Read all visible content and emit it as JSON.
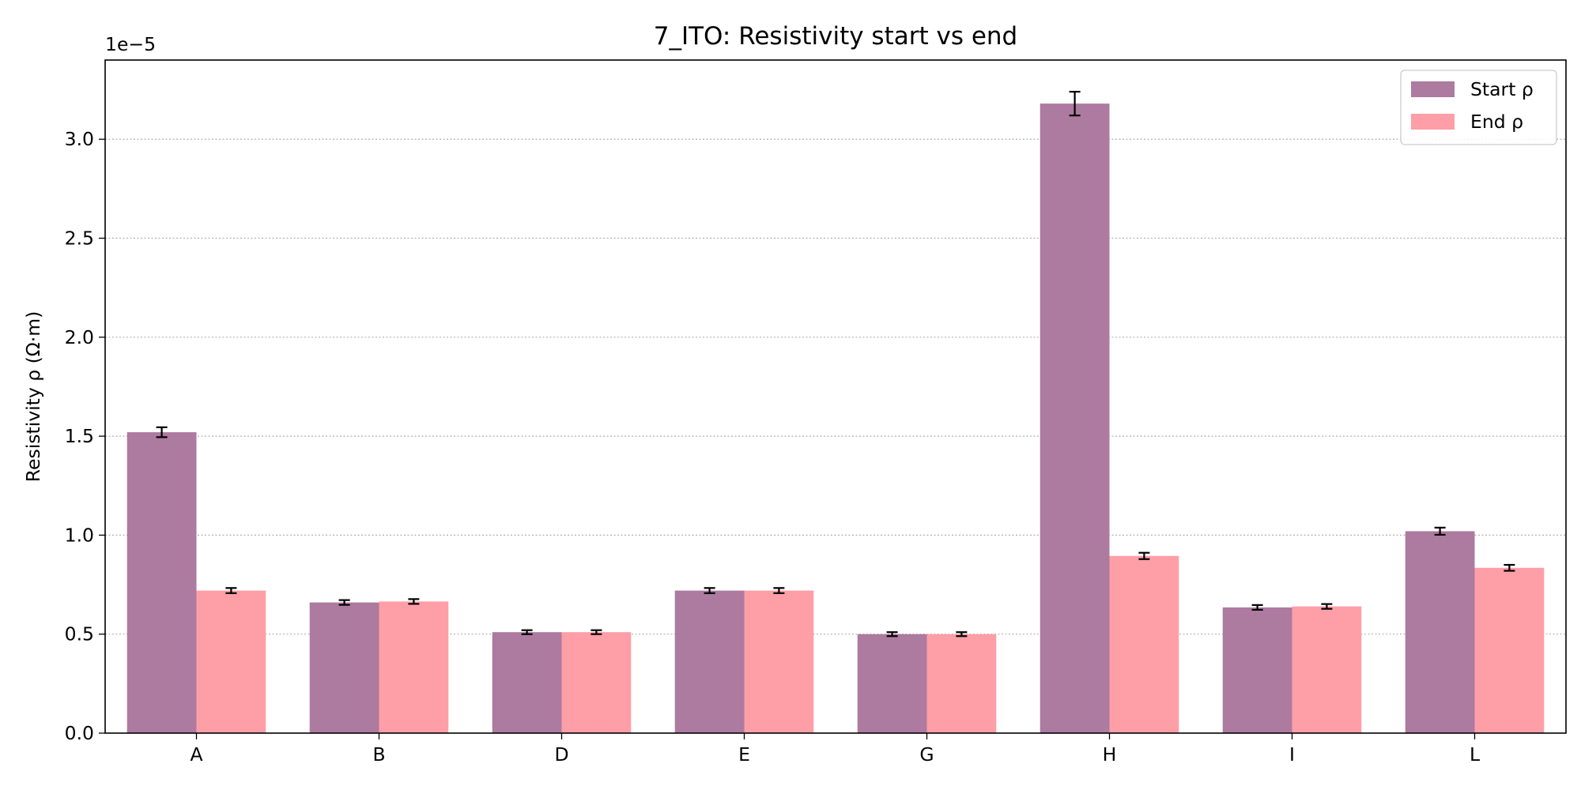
{
  "chart_data": {
    "type": "bar",
    "title": "7_ITO: Resistivity start vs end",
    "xlabel": "",
    "ylabel": "Resistivity ρ (Ω·m)",
    "y_offset_label": "1e−5",
    "ylim": [
      0,
      3.4
    ],
    "yticks": [
      0.0,
      0.5,
      1.0,
      1.5,
      2.0,
      2.5,
      3.0
    ],
    "ytick_labels": [
      "0.0",
      "0.5",
      "1.0",
      "1.5",
      "2.0",
      "2.5",
      "3.0"
    ],
    "grid": "y, dotted",
    "legend_position": "top-right",
    "categories": [
      "A",
      "B",
      "D",
      "E",
      "G",
      "H",
      "I",
      "L"
    ],
    "series": [
      {
        "name": "Start ρ",
        "color": "#ad7aa0",
        "values": [
          1.52,
          0.66,
          0.51,
          0.72,
          0.5,
          3.18,
          0.635,
          1.02
        ],
        "errors": [
          0.025,
          0.012,
          0.01,
          0.013,
          0.01,
          0.06,
          0.012,
          0.018
        ]
      },
      {
        "name": "End ρ",
        "color": "#fe9ea7",
        "values": [
          0.72,
          0.665,
          0.51,
          0.72,
          0.5,
          0.895,
          0.64,
          0.835
        ],
        "errors": [
          0.013,
          0.012,
          0.01,
          0.013,
          0.01,
          0.016,
          0.012,
          0.015
        ]
      }
    ]
  }
}
